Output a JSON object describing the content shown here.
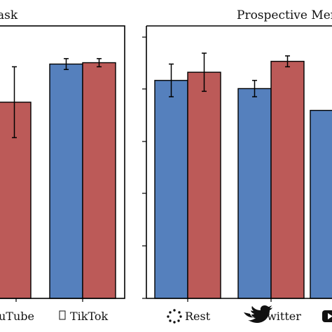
{
  "chart_data": [
    {
      "type": "bar",
      "title": "Task",
      "categories": [
        "uTube",
        "TikTok"
      ],
      "category_icons": [
        "youtube-icon",
        "tiktok-icon"
      ],
      "ylim": [
        0,
        1
      ],
      "grid": false,
      "series": [
        {
          "color": "#5580BD",
          "values": [
            null,
            0.86
          ],
          "errors": [
            null,
            0.02
          ]
        },
        {
          "color": "#BC5A58",
          "values": [
            0.72,
            0.865
          ],
          "errors": [
            0.13,
            0.015
          ]
        }
      ]
    },
    {
      "type": "bar",
      "title": "Prospective Mer",
      "categories": [
        "Rest",
        "Twitter",
        ""
      ],
      "category_icons": [
        "rest-icon",
        "twitter-icon",
        "youtube-icon"
      ],
      "ylim": [
        0,
        1
      ],
      "grid": false,
      "series": [
        {
          "color": "#5580BD",
          "values": [
            0.8,
            0.77,
            0.69
          ],
          "errors": [
            0.06,
            0.03,
            null
          ]
        },
        {
          "color": "#BC5A58",
          "values": [
            0.83,
            0.87,
            null
          ],
          "errors": [
            0.07,
            0.02,
            null
          ]
        }
      ]
    }
  ]
}
